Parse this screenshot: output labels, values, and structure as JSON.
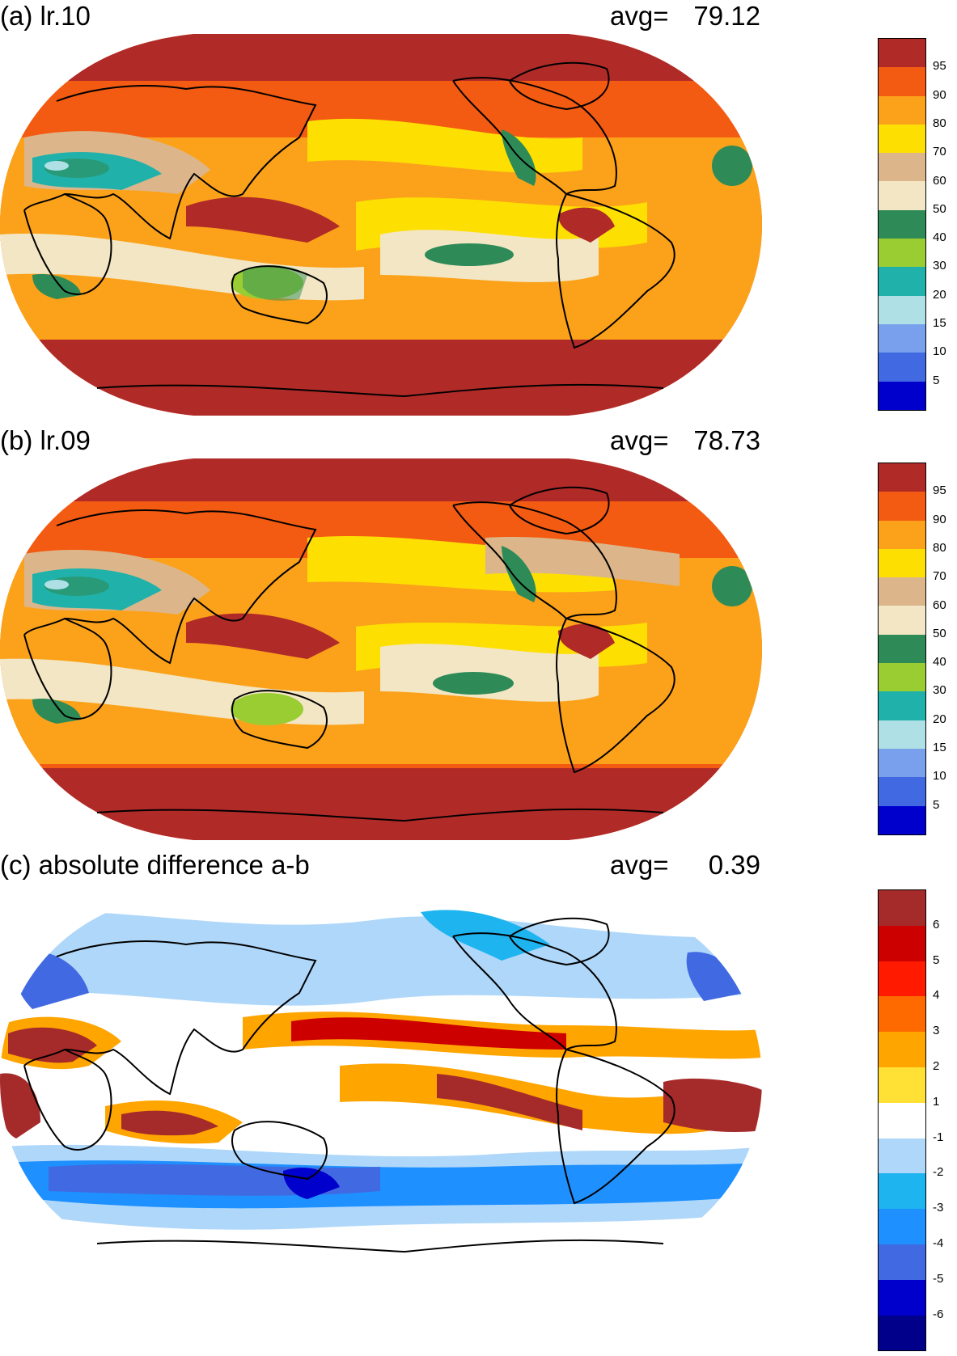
{
  "panels": [
    {
      "id": "a",
      "title": "(a) lr.10",
      "avg_label": "avg=",
      "avg_value": "79.12",
      "colorbar": {
        "colors": [
          "#b02a28",
          "#f35a12",
          "#fca21a",
          "#fde002",
          "#dcb68a",
          "#f3e6c4",
          "#2e8b57",
          "#9acd32",
          "#20b2aa",
          "#afe0e6",
          "#78a0ec",
          "#4169e1",
          "#0000cd"
        ],
        "labels": [
          "95",
          "90",
          "80",
          "70",
          "60",
          "50",
          "40",
          "30",
          "20",
          "15",
          "10",
          "5"
        ]
      }
    },
    {
      "id": "b",
      "title": "(b) lr.09",
      "avg_label": "avg=",
      "avg_value": "78.73",
      "colorbar": {
        "colors": [
          "#b02a28",
          "#f35a12",
          "#fca21a",
          "#fde002",
          "#dcb68a",
          "#f3e6c4",
          "#2e8b57",
          "#9acd32",
          "#20b2aa",
          "#afe0e6",
          "#78a0ec",
          "#4169e1",
          "#0000cd"
        ],
        "labels": [
          "95",
          "90",
          "80",
          "70",
          "60",
          "50",
          "40",
          "30",
          "20",
          "15",
          "10",
          "5"
        ]
      }
    },
    {
      "id": "c",
      "title": "(c) absolute difference a-b",
      "avg_label": "avg=",
      "avg_value": "0.39",
      "colorbar": {
        "colors": [
          "#a52a2a",
          "#cd0000",
          "#ff1a00",
          "#ff6a00",
          "#ffa500",
          "#ffe135",
          "#ffffff",
          "#afd7fa",
          "#1eb4f0",
          "#1e90ff",
          "#4169e1",
          "#0000cd",
          "#00008b"
        ],
        "labels": [
          "6",
          "5",
          "4",
          "3",
          "2",
          "1",
          "-1",
          "-2",
          "-3",
          "-4",
          "-5",
          "-6"
        ]
      }
    }
  ]
}
